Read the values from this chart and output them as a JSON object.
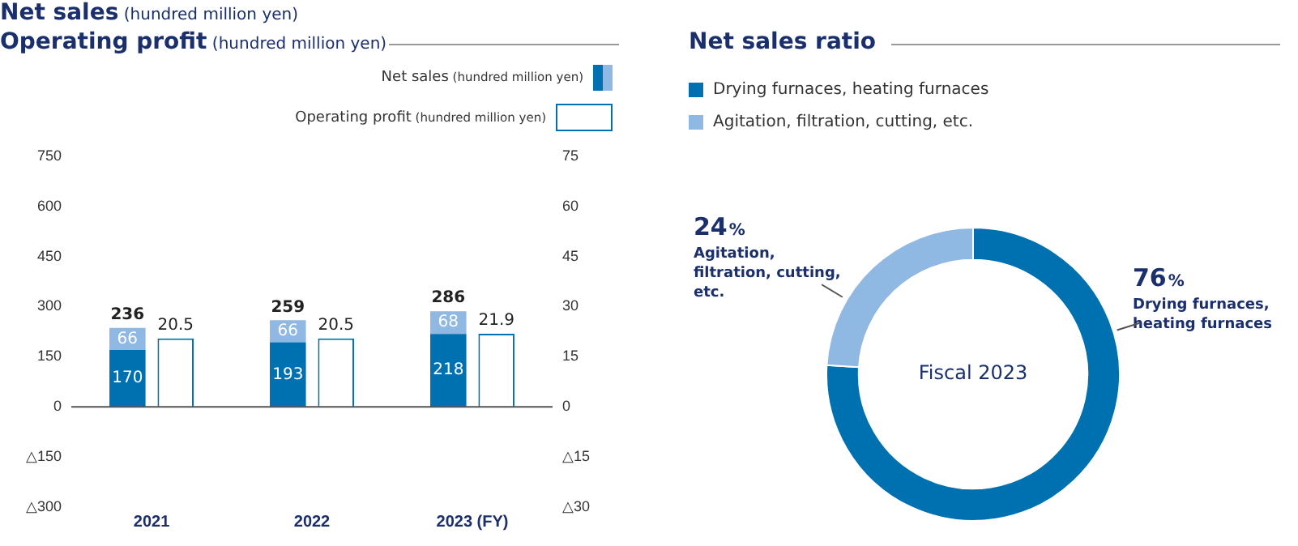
{
  "chart_data": [
    {
      "type": "bar",
      "title": "Net sales (hundred million yen)",
      "subtitle": "Operating profit (hundred million yen)",
      "categories": [
        "2021",
        "2022",
        "2023 (FY)"
      ],
      "stacked": true,
      "series": [
        {
          "name": "Net sales (hundred million yen)",
          "color": "#0071b0",
          "values": [
            170,
            193,
            218
          ]
        },
        {
          "color": "#8fb8e3",
          "values": [
            66,
            66,
            68
          ]
        },
        {
          "name": "Operating profit (hundred million yen)",
          "color": "#ffffff",
          "values": [
            20.5,
            20.5,
            21.9
          ],
          "axis": "y2"
        }
      ],
      "totals": [
        "236",
        "259",
        "286"
      ],
      "data_labels": true,
      "legend": "top right",
      "grid": false,
      "ylim": [
        -300,
        750
      ],
      "yticks": [
        {
          "value": -300,
          "label": "△300"
        },
        {
          "value": -150,
          "label": "△150"
        },
        0,
        150,
        300,
        450,
        600,
        750
      ],
      "y2lim": [
        -30,
        75
      ],
      "y2ticks": [
        {
          "value": -30,
          "label": "△30"
        },
        {
          "value": -15,
          "label": "△15"
        },
        0,
        15,
        30,
        45,
        60,
        75
      ],
      "ref_lines": [
        {
          "axis": "y",
          "value": 0,
          "color": "#555555"
        }
      ]
    },
    {
      "type": "donut",
      "title": "Net sales ratio",
      "categories": [
        "Drying furnaces, heating furnaces",
        "Agitation, filtration, cutting, etc."
      ],
      "values": [
        76,
        24
      ],
      "colors": [
        "#0071b0",
        "#8fb8e3"
      ],
      "value_labels": [
        "76%",
        "24%"
      ],
      "legend": "top left",
      "annotations": [
        "Fiscal 2023"
      ]
    }
  ]
}
